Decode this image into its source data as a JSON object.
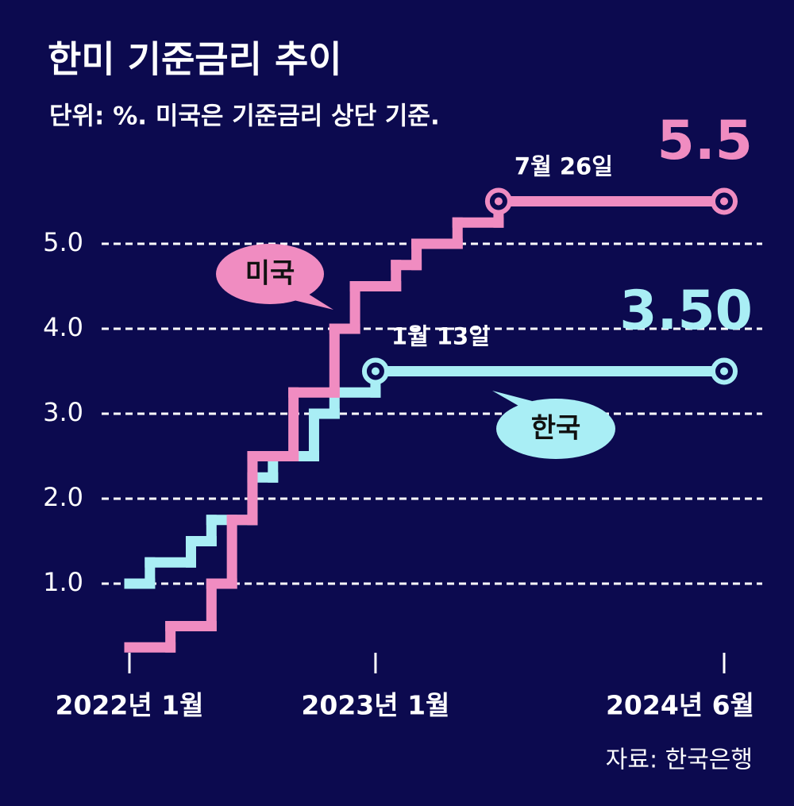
{
  "chart_data": {
    "type": "step",
    "title": "한미 기준금리 추이",
    "subtitle": "단위: %. 미국은 기준금리 상단 기준.",
    "source": "자료: 한국은행",
    "xlim": [
      "2022-01",
      "2024-06"
    ],
    "xticks": [
      {
        "value": "2022-01",
        "label": "2022년 1월"
      },
      {
        "value": "2023-01",
        "label": "2023년 1월"
      },
      {
        "value": "2024-06",
        "label": "2024년 6월"
      }
    ],
    "ylim": [
      0,
      6
    ],
    "yticks": [
      {
        "value": 1,
        "label": "1.0"
      },
      {
        "value": 2,
        "label": "2.0"
      },
      {
        "value": 3,
        "label": "3.0"
      },
      {
        "value": 4,
        "label": "4.0"
      },
      {
        "value": 5,
        "label": "5.0"
      }
    ],
    "grid": true,
    "series": [
      {
        "name": "한국",
        "color": "#a9eef5",
        "x": [
          "2022-01",
          "2022-02",
          "2022-04",
          "2022-05",
          "2022-07",
          "2022-08",
          "2022-10",
          "2022-11",
          "2023-01",
          "2024-06"
        ],
        "values": [
          1.0,
          1.25,
          1.5,
          1.75,
          2.25,
          2.5,
          3.0,
          3.25,
          3.5,
          3.5
        ],
        "value_labels": [
          null,
          null,
          null,
          null,
          null,
          null,
          null,
          null,
          null,
          "3.50"
        ],
        "annotation": "1월 13일",
        "annotation_index": 8
      },
      {
        "name": "미국",
        "color": "#f08cc1",
        "x": [
          "2022-01",
          "2022-03",
          "2022-05",
          "2022-06",
          "2022-07",
          "2022-09",
          "2022-11",
          "2022-12",
          "2023-02",
          "2023-03",
          "2023-05",
          "2023-07",
          "2024-06"
        ],
        "values": [
          0.25,
          0.5,
          1.0,
          1.75,
          2.5,
          3.25,
          4.0,
          4.5,
          4.75,
          5.0,
          5.25,
          5.5,
          5.5
        ],
        "annotation": "7월 26일",
        "annotation_index": 11
      }
    ]
  }
}
